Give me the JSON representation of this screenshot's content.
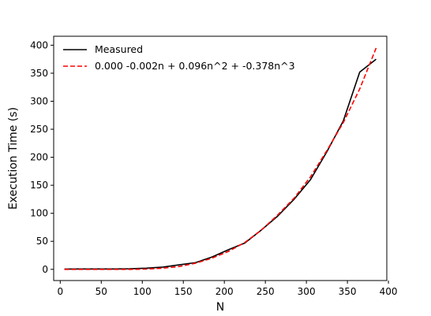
{
  "chart_data": {
    "type": "line",
    "xlabel": "N",
    "ylabel": "Execution Time (s)",
    "xlim": [
      -8,
      398
    ],
    "ylim": [
      -20,
      416
    ],
    "xticks": [
      0,
      50,
      100,
      150,
      200,
      250,
      300,
      350,
      400
    ],
    "yticks": [
      0,
      50,
      100,
      150,
      200,
      250,
      300,
      350,
      400
    ],
    "grid": false,
    "legend_position": "top-left",
    "series": [
      {
        "name": "Measured",
        "color": "#000000",
        "style": "solid",
        "x": [
          5,
          25,
          45,
          65,
          85,
          105,
          125,
          145,
          165,
          185,
          205,
          225,
          245,
          265,
          285,
          305,
          325,
          345,
          365,
          385
        ],
        "y": [
          0.5,
          0.6,
          0.6,
          0.7,
          1,
          2,
          4,
          8,
          12,
          22,
          35,
          47,
          70,
          95,
          125,
          160,
          210,
          265,
          352,
          375
        ]
      },
      {
        "name": "0.000 -0.002n + 0.096n^2 + -0.378n^3",
        "color": "#ff0000",
        "style": "dashed",
        "x": [
          5,
          25,
          45,
          65,
          85,
          105,
          125,
          145,
          165,
          185,
          205,
          225,
          245,
          265,
          285,
          305,
          325,
          345,
          365,
          385
        ],
        "y": [
          0,
          0,
          0,
          0,
          0,
          0.5,
          2,
          5,
          11,
          20,
          32,
          48,
          70,
          97,
          127,
          165,
          212,
          262,
          322,
          395
        ]
      }
    ]
  }
}
